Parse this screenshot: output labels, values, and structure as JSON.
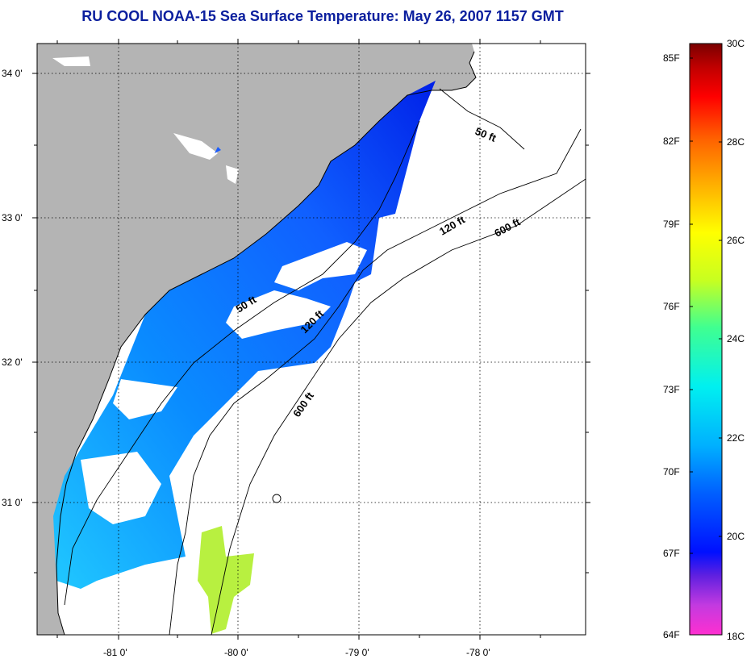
{
  "title": {
    "text": "RU COOL  NOAA-15  Sea Surface Temperature:  May 26, 2007 1157 GMT",
    "color": "#0b1f9e"
  },
  "map": {
    "lat_labels": [
      "34 0'",
      "33 0'",
      "32 0'",
      "31 0'"
    ],
    "lon_labels": [
      "-81 0'",
      "-80 0'",
      "-79 0'",
      "-78 0'"
    ],
    "contours": [
      "50 ft",
      "120 ft",
      "600 ft",
      "50 ft",
      "120 ft",
      "600 ft"
    ],
    "land_color": "#b4b4b4",
    "ocean_color": "#ffffff"
  },
  "colorbar": {
    "fahrenheit": [
      "85F",
      "82F",
      "79F",
      "76F",
      "73F",
      "70F",
      "67F",
      "64F"
    ],
    "celsius": [
      "30C",
      "28C",
      "26C",
      "24C",
      "22C",
      "20C",
      "18C"
    ],
    "range_c": [
      18,
      30
    ],
    "gradient_colors": [
      "#ff2fd0",
      "#c33ae0",
      "#6020e0",
      "#0010ff",
      "#0060ff",
      "#00b0ff",
      "#00f0f0",
      "#40ff90",
      "#c8ff20",
      "#ffff00",
      "#ffb000",
      "#ff6000",
      "#ff0000",
      "#c00000",
      "#7a0000"
    ]
  }
}
